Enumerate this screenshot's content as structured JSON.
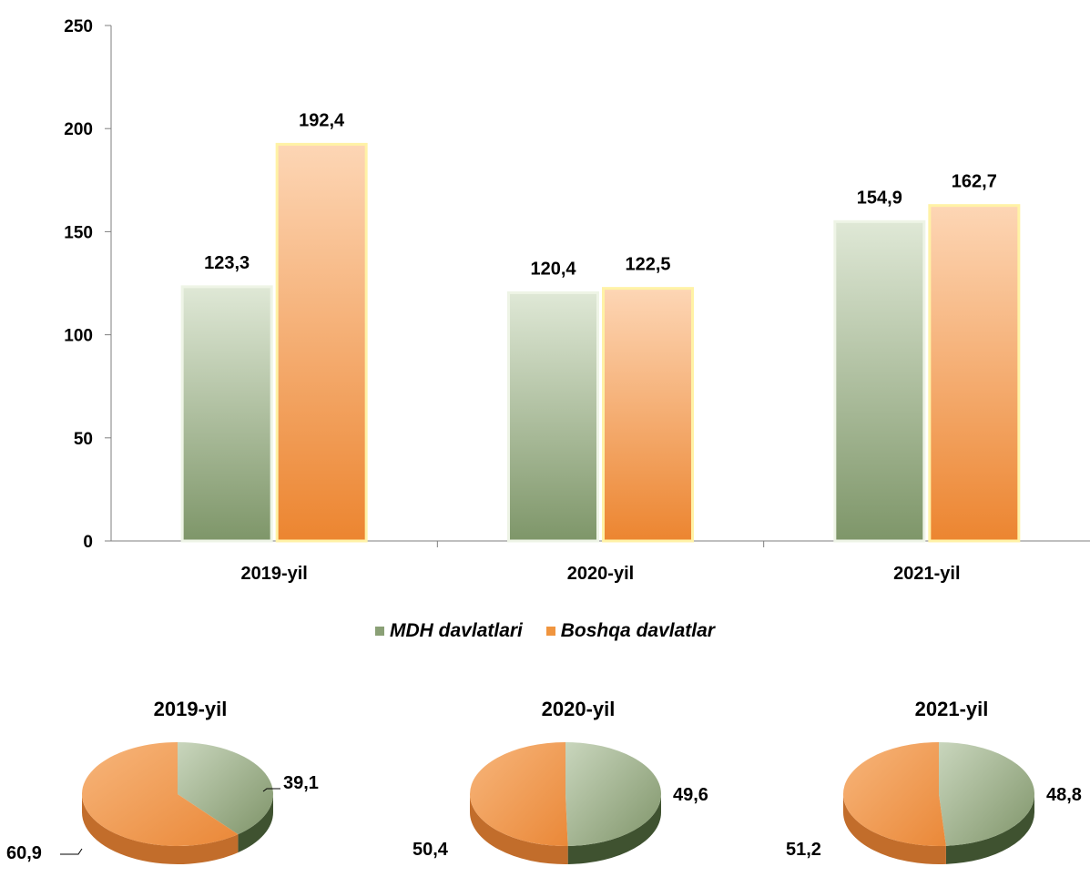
{
  "chart_data": [
    {
      "type": "bar",
      "categories": [
        "2019-yil",
        "2020-yil",
        "2021-yil"
      ],
      "series": [
        {
          "name": "MDH davlatlari",
          "values": [
            123.3,
            120.4,
            154.9
          ],
          "labels": [
            "123,3",
            "120,4",
            "154,9"
          ],
          "color": "#9bb089"
        },
        {
          "name": "Boshqa davlatlar",
          "values": [
            192.4,
            122.5,
            162.7
          ],
          "labels": [
            "192,4",
            "122,5",
            "162,7"
          ],
          "color": "#f2a35e"
        }
      ],
      "ylim": [
        0,
        250
      ],
      "yticks": [
        0,
        50,
        100,
        150,
        200,
        250
      ],
      "legend": "bottom",
      "grid": false
    },
    {
      "type": "pie",
      "title": "2019-yil",
      "slices": [
        {
          "name": "MDH davlatlari",
          "value": 39.1,
          "label": "39,1"
        },
        {
          "name": "Boshqa davlatlar",
          "value": 60.9,
          "label": "60,9"
        }
      ]
    },
    {
      "type": "pie",
      "title": "2020-yil",
      "slices": [
        {
          "name": "MDH davlatlari",
          "value": 49.6,
          "label": "49,6"
        },
        {
          "name": "Boshqa davlatlar",
          "value": 50.4,
          "label": "50,4"
        }
      ]
    },
    {
      "type": "pie",
      "title": "2021-yil",
      "slices": [
        {
          "name": "MDH davlatlari",
          "value": 48.8,
          "label": "48,8"
        },
        {
          "name": "Boshqa davlatlar",
          "value": 51.2,
          "label": "51,2"
        }
      ]
    }
  ],
  "colors": {
    "mdh_light": "#d6e2cc",
    "mdh_dark": "#7a9163",
    "mdh_side": "#4a5e3a",
    "other_light": "#fcd3b0",
    "other_dark": "#ec8a3a",
    "other_side": "#b8642a",
    "axis": "#7f7f7f"
  }
}
